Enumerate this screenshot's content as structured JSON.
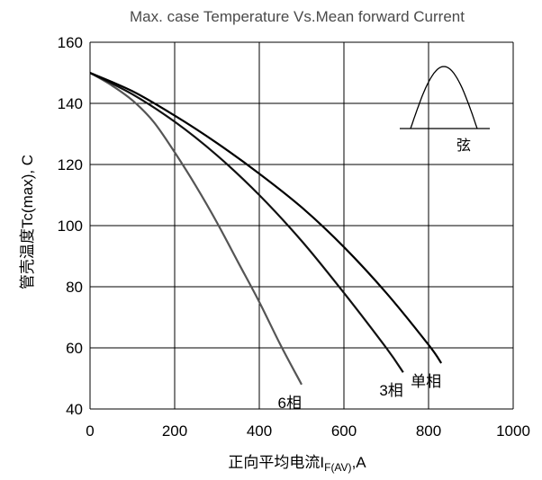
{
  "chart_data": {
    "type": "line",
    "title": "Max. case Temperature Vs.Mean forward Current",
    "xlabel": "正向平均电流I",
    "xlabel_subscript": "F(AV)",
    "xlabel_suffix": ",A",
    "ylabel": "管壳温度Tc(max), C",
    "xlim": [
      0,
      1000
    ],
    "ylim": [
      40,
      160
    ],
    "grid": true,
    "x_ticks": [
      0,
      200,
      400,
      600,
      800,
      1000
    ],
    "y_ticks": [
      40,
      60,
      80,
      100,
      120,
      140,
      160
    ],
    "x_tick_labels": [
      "0",
      "200",
      "400",
      "600",
      "800",
      "1000"
    ],
    "y_tick_labels": [
      "40",
      "60",
      "80",
      "100",
      "120",
      "140",
      "160"
    ],
    "series": [
      {
        "name": "6相",
        "color": "#555555",
        "x": [
          0,
          50,
          100,
          150,
          200,
          250,
          300,
          350,
          400,
          450,
          500
        ],
        "y": [
          150,
          146,
          141,
          134,
          124,
          113,
          101,
          88,
          75,
          61,
          48
        ]
      },
      {
        "name": "3相",
        "color": "#111111",
        "x": [
          0,
          100,
          200,
          300,
          400,
          500,
          600,
          700,
          740
        ],
        "y": [
          150,
          143,
          134,
          123,
          110,
          95,
          78,
          60,
          52
        ]
      },
      {
        "name": "单相",
        "color": "#000000",
        "x": [
          0,
          100,
          200,
          300,
          400,
          500,
          600,
          700,
          800,
          830
        ],
        "y": [
          150,
          144,
          136,
          127,
          117,
          106,
          93,
          78,
          61,
          55
        ]
      }
    ],
    "inset": {
      "label": "弦",
      "waveform": "half-sine"
    }
  }
}
